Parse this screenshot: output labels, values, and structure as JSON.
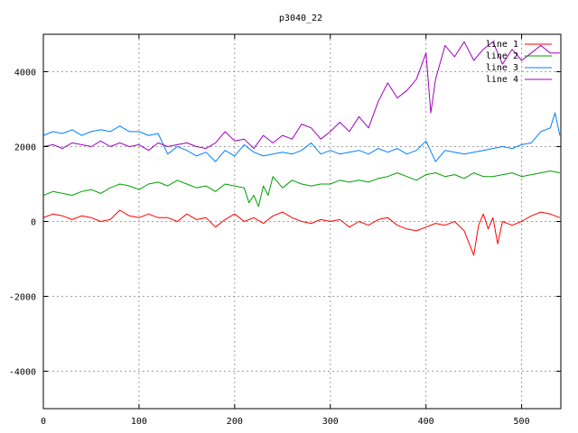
{
  "chart_data": {
    "type": "line",
    "title": "p3040_22",
    "xlabel": "",
    "ylabel": "",
    "xlim": [
      0,
      541
    ],
    "ylim": [
      -5000,
      5000
    ],
    "xticks": [
      0,
      100,
      200,
      300,
      400,
      500
    ],
    "yticks": [
      -4000,
      -2000,
      0,
      2000,
      4000
    ],
    "grid": true,
    "legend_position": "top-right",
    "series": [
      {
        "name": "line 1",
        "color": "#ff0000",
        "x": [
          0,
          10,
          20,
          30,
          40,
          50,
          60,
          70,
          80,
          90,
          100,
          110,
          120,
          130,
          140,
          150,
          160,
          170,
          180,
          190,
          200,
          210,
          220,
          230,
          240,
          250,
          260,
          270,
          280,
          290,
          300,
          310,
          320,
          330,
          340,
          350,
          360,
          370,
          380,
          390,
          400,
          410,
          420,
          430,
          440,
          450,
          455,
          460,
          465,
          470,
          475,
          480,
          490,
          500,
          510,
          520,
          530,
          540
        ],
        "y": [
          100,
          200,
          150,
          50,
          150,
          100,
          0,
          50,
          300,
          150,
          100,
          200,
          100,
          100,
          0,
          200,
          50,
          100,
          -150,
          50,
          200,
          0,
          100,
          -50,
          150,
          250,
          100,
          0,
          -50,
          50,
          0,
          50,
          -150,
          0,
          -100,
          50,
          100,
          -100,
          -200,
          -250,
          -150,
          -50,
          -100,
          0,
          -250,
          -900,
          -100,
          200,
          -200,
          100,
          -600,
          0,
          -100,
          0,
          150,
          250,
          200,
          100
        ]
      },
      {
        "name": "line 2",
        "color": "#00a000",
        "x": [
          0,
          10,
          20,
          30,
          40,
          50,
          60,
          70,
          80,
          90,
          100,
          110,
          120,
          130,
          140,
          150,
          160,
          170,
          180,
          190,
          200,
          210,
          215,
          220,
          225,
          230,
          235,
          240,
          250,
          260,
          270,
          280,
          290,
          300,
          310,
          320,
          330,
          340,
          350,
          360,
          370,
          380,
          390,
          400,
          410,
          420,
          430,
          440,
          450,
          460,
          470,
          480,
          490,
          500,
          510,
          520,
          530,
          540
        ],
        "y": [
          700,
          800,
          750,
          700,
          800,
          850,
          750,
          900,
          1000,
          950,
          850,
          1000,
          1050,
          950,
          1100,
          1000,
          900,
          950,
          800,
          1000,
          950,
          900,
          500,
          700,
          400,
          950,
          700,
          1200,
          900,
          1100,
          1000,
          950,
          1000,
          1000,
          1100,
          1050,
          1100,
          1050,
          1150,
          1200,
          1300,
          1200,
          1100,
          1250,
          1300,
          1200,
          1250,
          1150,
          1300,
          1200,
          1200,
          1250,
          1300,
          1200,
          1250,
          1300,
          1350,
          1300
        ]
      },
      {
        "name": "line 3",
        "color": "#0080ff",
        "x": [
          0,
          10,
          20,
          30,
          40,
          50,
          60,
          70,
          80,
          90,
          100,
          110,
          120,
          130,
          140,
          150,
          160,
          170,
          180,
          190,
          200,
          210,
          220,
          230,
          240,
          250,
          260,
          270,
          280,
          290,
          300,
          310,
          320,
          330,
          340,
          350,
          360,
          370,
          380,
          390,
          400,
          410,
          420,
          430,
          440,
          450,
          460,
          470,
          480,
          490,
          500,
          510,
          520,
          530,
          535,
          540
        ],
        "y": [
          2300,
          2400,
          2350,
          2450,
          2300,
          2400,
          2450,
          2400,
          2550,
          2400,
          2400,
          2300,
          2350,
          1800,
          2000,
          1900,
          1750,
          1850,
          1600,
          1900,
          1750,
          2050,
          1850,
          1750,
          1800,
          1850,
          1800,
          1900,
          2100,
          1800,
          1900,
          1800,
          1850,
          1900,
          1800,
          1950,
          1850,
          1950,
          1800,
          1900,
          2150,
          1600,
          1900,
          1850,
          1800,
          1850,
          1900,
          1950,
          2000,
          1950,
          2050,
          2100,
          2400,
          2500,
          2900,
          2300
        ]
      },
      {
        "name": "line 4",
        "color": "#a000c0",
        "x": [
          0,
          10,
          20,
          30,
          40,
          50,
          60,
          70,
          80,
          90,
          100,
          110,
          120,
          130,
          140,
          150,
          160,
          170,
          180,
          190,
          200,
          210,
          220,
          230,
          240,
          250,
          260,
          270,
          280,
          290,
          300,
          310,
          320,
          330,
          340,
          350,
          360,
          370,
          380,
          390,
          400,
          405,
          410,
          420,
          430,
          440,
          450,
          460,
          470,
          480,
          490,
          500,
          510,
          520,
          530,
          540
        ],
        "y": [
          2000,
          2050,
          1950,
          2100,
          2050,
          2000,
          2150,
          2000,
          2100,
          2000,
          2050,
          1900,
          2100,
          2000,
          2050,
          2100,
          2000,
          1950,
          2100,
          2400,
          2150,
          2200,
          1950,
          2300,
          2100,
          2300,
          2200,
          2600,
          2500,
          2200,
          2400,
          2650,
          2400,
          2800,
          2500,
          3200,
          3700,
          3300,
          3500,
          3800,
          4500,
          2900,
          3800,
          4700,
          4400,
          4800,
          4300,
          4600,
          4800,
          4200,
          4600,
          4300,
          4500,
          4700,
          4500,
          4500
        ]
      }
    ]
  }
}
